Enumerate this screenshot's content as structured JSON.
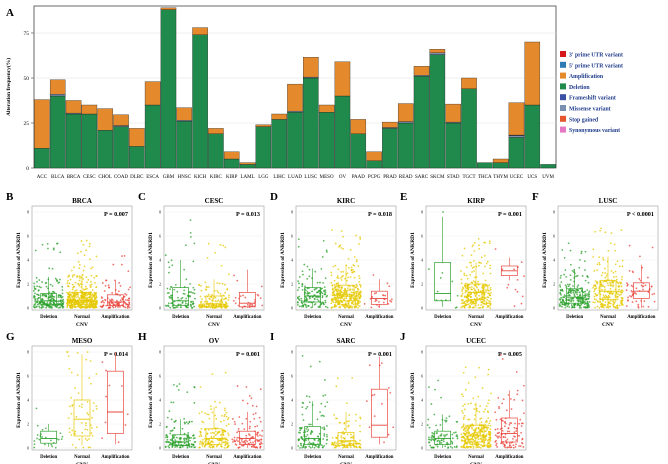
{
  "colors": {
    "deletion": "#1f8a4c",
    "amplification": "#e58a2c",
    "three_utr": "#d7191c",
    "five_utr": "#2c7bb6",
    "frameshift": "#3a4fa3",
    "missense": "#7b8fb0",
    "stop_gained": "#e4572e",
    "synonymous": "#e377c2",
    "box_deletion": "#2ca02c",
    "box_normal": "#e6c800",
    "box_amplification": "#e8453c"
  },
  "chart_data": [
    {
      "id": "A",
      "type": "bar",
      "panel_label": "A",
      "ylabel": "Alteration frequency(%)",
      "ylim": [
        0,
        90
      ],
      "yticks": [
        0,
        25,
        50,
        75
      ],
      "categories": [
        "ACC",
        "BLCA",
        "BRCA",
        "CESC",
        "CHOL",
        "COAD",
        "DLBC",
        "ESCA",
        "GBM",
        "HNSC",
        "KICH",
        "KIRC",
        "KIRP",
        "LAML",
        "LGG",
        "LIHC",
        "LUAD",
        "LUSC",
        "MESO",
        "OV",
        "PAAD",
        "PCPG",
        "PRAD",
        "READ",
        "SARC",
        "SKCM",
        "STAD",
        "TGCT",
        "THCA",
        "THYM",
        "UCEC",
        "UCS",
        "UVM"
      ],
      "series": [
        {
          "name": "Deletion",
          "values": [
            11,
            40,
            30,
            30,
            21,
            23,
            12,
            35,
            88,
            26,
            74,
            19,
            5,
            2,
            23,
            27,
            31,
            50,
            31,
            40,
            19,
            4,
            22,
            25,
            51,
            63,
            25,
            44,
            3,
            3,
            17,
            35,
            2
          ]
        },
        {
          "name": "Amplification",
          "values": [
            27,
            8,
            7,
            5,
            12,
            6,
            10,
            13,
            1,
            7,
            4,
            3,
            4,
            1,
            1,
            3,
            15,
            11,
            4,
            19,
            8,
            5,
            3,
            10,
            5,
            2,
            10,
            6,
            0,
            2,
            18,
            35,
            0
          ]
        },
        {
          "name": "Missense variant",
          "values": [
            0,
            1,
            0.5,
            0,
            0,
            0.6,
            0,
            0,
            0,
            0.5,
            0,
            0,
            0,
            0,
            0,
            0,
            0.6,
            0.5,
            0,
            0,
            0,
            0,
            0.5,
            0.8,
            0.5,
            1,
            0.5,
            0,
            0,
            0,
            1,
            0,
            0
          ]
        },
        {
          "name": "Frameshift variant",
          "values": [
            0,
            0,
            0,
            0,
            0,
            0,
            0,
            0,
            0,
            0,
            0,
            0,
            0,
            0,
            0,
            0,
            0,
            0,
            0,
            0,
            0,
            0,
            0,
            0,
            0,
            0,
            0,
            0,
            0,
            0,
            0.3,
            0,
            0
          ]
        }
      ],
      "legend": [
        "3' prime UTR variant",
        "5' prime UTR variant",
        "Amplification",
        "Deletion",
        "Frameshift variant",
        "Missense variant",
        "Stop gained",
        "Synonymous variant"
      ],
      "legend_position": "right"
    },
    {
      "id": "B",
      "type": "scatter",
      "panel_label": "B",
      "title": "BRCA",
      "p_value": "P = 0.007",
      "ylabel": "Expression of ANKRD1",
      "xlabel": "CNV",
      "groups": [
        "Deletion",
        "Normal",
        "Amplification"
      ],
      "yticks": [
        0,
        2,
        4,
        6,
        8
      ],
      "ylim": [
        0,
        8
      ],
      "box": [
        {
          "q1": 0.25,
          "median": 0.6,
          "q3": 1.2,
          "lo": 0,
          "hi": 2.6
        },
        {
          "q1": 0.3,
          "median": 0.65,
          "q3": 1.3,
          "lo": 0,
          "hi": 2.8
        },
        {
          "q1": 0.2,
          "median": 0.5,
          "q3": 1.1,
          "lo": 0,
          "hi": 2.3
        }
      ],
      "n": [
        230,
        480,
        110
      ],
      "spread": [
        3.5,
        3,
        2.5
      ]
    },
    {
      "id": "C",
      "type": "scatter",
      "panel_label": "C",
      "title": "CESC",
      "p_value": "P = 0.013",
      "ylabel": "Expression of ANKRD1",
      "xlabel": "CNV",
      "groups": [
        "Deletion",
        "Normal",
        "Amplification"
      ],
      "yticks": [
        0,
        2,
        4,
        6,
        8
      ],
      "ylim": [
        0,
        8
      ],
      "box": [
        {
          "q1": 0.2,
          "median": 0.6,
          "q3": 1.7,
          "lo": 0,
          "hi": 4.0
        },
        {
          "q1": 0.1,
          "median": 0.35,
          "q3": 1.0,
          "lo": 0,
          "hi": 2.4
        },
        {
          "q1": 0.1,
          "median": 0.4,
          "q3": 1.3,
          "lo": 0,
          "hi": 3.2
        }
      ],
      "n": [
        100,
        160,
        30
      ],
      "spread": [
        4,
        3,
        2.5
      ]
    },
    {
      "id": "D",
      "type": "scatter",
      "panel_label": "D",
      "title": "KIRC",
      "p_value": "P = 0.018",
      "ylabel": "Expression of ANKRD1",
      "xlabel": "CNV",
      "groups": [
        "Deletion",
        "Normal",
        "Amplification"
      ],
      "yticks": [
        0,
        2,
        4,
        6,
        8
      ],
      "ylim": [
        0,
        8
      ],
      "box": [
        {
          "q1": 0.5,
          "median": 1.0,
          "q3": 1.7,
          "lo": 0,
          "hi": 3.3
        },
        {
          "q1": 0.6,
          "median": 1.1,
          "q3": 1.9,
          "lo": 0,
          "hi": 3.6
        },
        {
          "q1": 0.3,
          "median": 0.8,
          "q3": 1.4,
          "lo": 0,
          "hi": 2.4
        }
      ],
      "n": [
        150,
        340,
        25
      ],
      "spread": [
        3,
        3,
        1.5
      ]
    },
    {
      "id": "E",
      "type": "scatter",
      "panel_label": "E",
      "title": "KIRP",
      "p_value": "P = 0.001",
      "ylabel": "Expression of ANKRD1",
      "xlabel": "CNV",
      "groups": [
        "Deletion",
        "Normal",
        "Amplification"
      ],
      "yticks": [
        0,
        2,
        4,
        6,
        8
      ],
      "ylim": [
        0,
        8
      ],
      "box": [
        {
          "q1": 0.6,
          "median": 1.2,
          "q3": 3.8,
          "lo": 0.1,
          "hi": 7.6
        },
        {
          "q1": 0.7,
          "median": 1.3,
          "q3": 2.0,
          "lo": 0,
          "hi": 3.8
        },
        {
          "q1": 2.7,
          "median": 3.1,
          "q3": 3.5,
          "lo": 2.3,
          "hi": 4.2
        }
      ],
      "n": [
        12,
        280,
        14
      ],
      "spread": [
        3,
        2,
        0.8
      ]
    },
    {
      "id": "F",
      "type": "scatter",
      "panel_label": "F",
      "title": "LUSC",
      "p_value": "P < 0.0001",
      "ylabel": "Expression of ANKRD1",
      "xlabel": "CNV",
      "groups": [
        "Deletion",
        "Normal",
        "Amplification"
      ],
      "yticks": [
        0,
        2,
        4,
        6,
        8
      ],
      "ylim": [
        0,
        8
      ],
      "box": [
        {
          "q1": 0.4,
          "median": 0.9,
          "q3": 1.6,
          "lo": 0,
          "hi": 3.2
        },
        {
          "q1": 0.7,
          "median": 1.4,
          "q3": 2.3,
          "lo": 0,
          "hi": 4.3
        },
        {
          "q1": 0.8,
          "median": 1.4,
          "q3": 2.1,
          "lo": 0,
          "hi": 3.6
        }
      ],
      "n": [
        250,
        230,
        55
      ],
      "spread": [
        2.5,
        2.5,
        2
      ]
    },
    {
      "id": "G",
      "type": "scatter",
      "panel_label": "G",
      "title": "MESO",
      "p_value": "P = 0.014",
      "ylabel": "Expression of ANKRD1",
      "xlabel": "CNV",
      "groups": [
        "Deletion",
        "Normal",
        "Amplification"
      ],
      "yticks": [
        0,
        2,
        4,
        6,
        8
      ],
      "ylim": [
        0,
        8
      ],
      "box": [
        {
          "q1": 0.4,
          "median": 0.8,
          "q3": 1.4,
          "lo": 0.1,
          "hi": 2.0
        },
        {
          "q1": 1.0,
          "median": 2.4,
          "q3": 4.0,
          "lo": 0.2,
          "hi": 7.8
        },
        {
          "q1": 1.2,
          "median": 3.0,
          "q3": 6.4,
          "lo": 0.3,
          "hi": 8.0
        }
      ],
      "n": [
        25,
        60,
        10
      ],
      "spread": [
        1.5,
        2,
        1.5
      ]
    },
    {
      "id": "H",
      "type": "scatter",
      "panel_label": "H",
      "title": "OV",
      "p_value": "P = 0.001",
      "ylabel": "Expression of ANKRD1",
      "xlabel": "CNV",
      "groups": [
        "Deletion",
        "Normal",
        "Amplification"
      ],
      "yticks": [
        0,
        2,
        4,
        6,
        8
      ],
      "ylim": [
        0,
        8
      ],
      "box": [
        {
          "q1": 0.2,
          "median": 0.5,
          "q3": 1.1,
          "lo": 0,
          "hi": 2.4
        },
        {
          "q1": 0.3,
          "median": 0.8,
          "q3": 1.6,
          "lo": 0,
          "hi": 3.4
        },
        {
          "q1": 0.3,
          "median": 0.8,
          "q3": 1.4,
          "lo": 0,
          "hi": 3.0
        }
      ],
      "n": [
        150,
        160,
        110
      ],
      "spread": [
        3,
        3.5,
        3
      ]
    },
    {
      "id": "I",
      "type": "scatter",
      "panel_label": "I",
      "title": "SARC",
      "p_value": "P = 0.001",
      "ylabel": "Expression of ANKRD1",
      "xlabel": "CNV",
      "groups": [
        "Deletion",
        "Normal",
        "Amplification"
      ],
      "yticks": [
        0,
        2,
        4,
        6,
        8
      ],
      "ylim": [
        0,
        8
      ],
      "box": [
        {
          "q1": 0.3,
          "median": 0.8,
          "q3": 1.8,
          "lo": 0,
          "hi": 3.9
        },
        {
          "q1": 0.2,
          "median": 0.6,
          "q3": 1.3,
          "lo": 0,
          "hi": 3.0
        },
        {
          "q1": 0.9,
          "median": 1.9,
          "q3": 4.9,
          "lo": 0.3,
          "hi": 7.6
        }
      ],
      "n": [
        130,
        120,
        14
      ],
      "spread": [
        4,
        4,
        1.5
      ]
    },
    {
      "id": "J",
      "type": "scatter",
      "panel_label": "J",
      "title": "UCEC",
      "p_value": "P = 0.005",
      "ylabel": "Expression of ANKRD1",
      "xlabel": "CNV",
      "groups": [
        "Deletion",
        "Normal",
        "Amplification"
      ],
      "yticks": [
        0,
        2,
        4,
        6,
        8
      ],
      "ylim": [
        0,
        8
      ],
      "box": [
        {
          "q1": 0.3,
          "median": 0.8,
          "q3": 1.4,
          "lo": 0,
          "hi": 2.8
        },
        {
          "q1": 0.5,
          "median": 1.0,
          "q3": 1.9,
          "lo": 0,
          "hi": 3.8
        },
        {
          "q1": 0.5,
          "median": 1.2,
          "q3": 2.5,
          "lo": 0,
          "hi": 4.8
        }
      ],
      "n": [
        90,
        330,
        110
      ],
      "spread": [
        3,
        3.5,
        3
      ]
    }
  ]
}
